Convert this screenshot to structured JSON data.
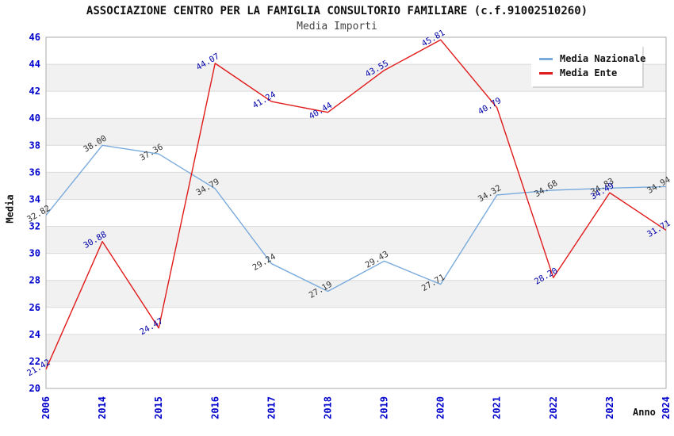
{
  "title": "ASSOCIAZIONE CENTRO PER LA FAMIGLIA CONSULTORIO FAMILIARE (c.f.91002510260)",
  "subtitle": "Media Importi",
  "legend": [
    {
      "label": "Media Nazionale",
      "color": "#7aabdc"
    },
    {
      "label": "Media Ente",
      "color": "#e01a1a"
    }
  ],
  "chart_data": {
    "type": "line",
    "x": [
      "2006",
      "2014",
      "2015",
      "2016",
      "2017",
      "2018",
      "2019",
      "2020",
      "2021",
      "2022",
      "2023",
      "2024"
    ],
    "series": [
      {
        "name": "Media Nazionale",
        "color": "#7aabdc",
        "label_color": "#333333",
        "values": [
          32.82,
          38.0,
          37.36,
          34.79,
          29.24,
          27.19,
          29.43,
          27.71,
          34.32,
          34.68,
          34.83,
          34.94
        ]
      },
      {
        "name": "Media Ente",
        "color": "#e01a1a",
        "label_color": "#0000a8",
        "values": [
          21.42,
          30.88,
          24.47,
          44.07,
          41.24,
          40.44,
          43.55,
          45.81,
          40.79,
          28.2,
          34.49,
          31.71
        ]
      }
    ],
    "xlabel": "Anno",
    "ylabel": "Media",
    "ylim": [
      20,
      46
    ],
    "ytick_step": 2,
    "grid": true,
    "legend_position": "top-right",
    "tick_color": "#0000cc",
    "band_colors": [
      "#ffffff",
      "#f1f1f1"
    ],
    "grid_color": "#dadada",
    "border_color": "#aaaaaa"
  }
}
